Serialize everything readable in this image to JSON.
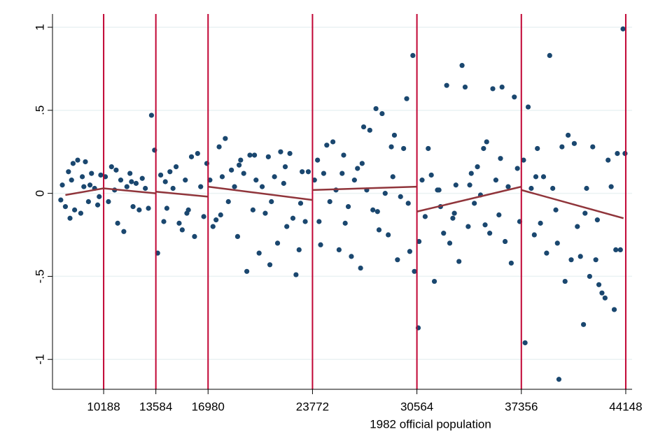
{
  "chart_data": {
    "type": "scatter",
    "xlabel": "1982 official population",
    "xlim": [
      6861,
      44560
    ],
    "ylim": [
      -1.18,
      1.08
    ],
    "xticks": [
      10188,
      13584,
      16980,
      23772,
      30564,
      37356,
      44148
    ],
    "yticks": [
      {
        "value": -1,
        "label": "-1"
      },
      {
        "value": -0.5,
        "label": "-.5"
      },
      0,
      {
        "value": 0.5,
        "label": ".5"
      },
      1
    ],
    "grid": true,
    "xline_color": "#c10534",
    "color": "#1a476f",
    "x": [
      7400,
      7500,
      7700,
      7900,
      8000,
      8200,
      8300,
      8500,
      8700,
      8900,
      9000,
      9200,
      9400,
      9600,
      9800,
      10000,
      8100,
      8800,
      9300,
      9900,
      10300,
      10500,
      10700,
      10900,
      11100,
      11300,
      11500,
      11700,
      11900,
      12100,
      12300,
      12500,
      12700,
      12900,
      13100,
      13300,
      13500,
      13700,
      11000,
      12000,
      13900,
      14100,
      14300,
      14500,
      14700,
      14900,
      15100,
      15300,
      15500,
      15700,
      15900,
      16100,
      16300,
      16500,
      16700,
      16900,
      14200,
      15600,
      17100,
      17300,
      17500,
      17700,
      17900,
      18100,
      18300,
      18500,
      18700,
      18900,
      19100,
      19300,
      19500,
      19700,
      19900,
      20100,
      20300,
      20500,
      20700,
      20900,
      21100,
      21300,
      21500,
      21700,
      21900,
      22100,
      22300,
      22500,
      22700,
      22900,
      23100,
      23300,
      23500,
      17800,
      19000,
      20000,
      21000,
      22000,
      23000,
      23900,
      24100,
      24300,
      24500,
      24700,
      24900,
      25100,
      25300,
      25500,
      25700,
      25900,
      26100,
      26300,
      26500,
      26700,
      26900,
      27100,
      27300,
      27500,
      27700,
      27900,
      28100,
      28300,
      28500,
      28700,
      28900,
      29100,
      29300,
      29500,
      29700,
      29900,
      30100,
      30300,
      30400,
      24200,
      25800,
      27000,
      28000,
      29000,
      30000,
      30700,
      30900,
      31100,
      31300,
      31500,
      31700,
      31900,
      32100,
      32300,
      32500,
      32700,
      32900,
      33100,
      33300,
      33500,
      33700,
      33900,
      34100,
      34300,
      34500,
      34700,
      34900,
      35100,
      35300,
      35500,
      35700,
      35900,
      36100,
      36300,
      36500,
      36700,
      36900,
      37100,
      37250,
      30650,
      32000,
      33000,
      34000,
      35000,
      36000,
      37500,
      37600,
      37800,
      38000,
      38200,
      38400,
      38600,
      38800,
      39000,
      39200,
      39400,
      39600,
      39800,
      40000,
      40200,
      40400,
      40600,
      40800,
      41000,
      41200,
      41400,
      41600,
      41800,
      42000,
      42200,
      42400,
      42600,
      42800,
      43000,
      43200,
      43400,
      43600,
      43800,
      43970,
      44100,
      38300,
      39700,
      41500,
      42300,
      43500
    ],
    "values": [
      -0.04,
      0.05,
      -0.08,
      0.13,
      -0.15,
      0.18,
      -0.1,
      0.2,
      -0.12,
      0.04,
      0.19,
      -0.05,
      0.12,
      0.03,
      -0.07,
      0.11,
      0.08,
      0.1,
      0.05,
      -0.02,
      0.1,
      -0.05,
      0.16,
      0.02,
      -0.18,
      0.08,
      -0.23,
      0.04,
      0.12,
      -0.08,
      0.06,
      -0.1,
      0.09,
      0.03,
      -0.09,
      0.47,
      0.26,
      -0.36,
      0.14,
      0.07,
      0.11,
      -0.17,
      -0.09,
      0.13,
      0.03,
      0.16,
      -0.18,
      -0.22,
      0.08,
      -0.1,
      0.22,
      -0.26,
      0.24,
      0.04,
      -0.14,
      0.18,
      0.07,
      -0.12,
      0.08,
      -0.2,
      -0.16,
      0.28,
      0.1,
      0.33,
      -0.05,
      0.14,
      0.04,
      -0.26,
      0.2,
      0.12,
      -0.47,
      0.23,
      -0.1,
      0.08,
      -0.36,
      0.04,
      -0.12,
      0.22,
      -0.05,
      0.1,
      -0.3,
      0.25,
      0.06,
      -0.2,
      0.24,
      -0.15,
      -0.49,
      -0.34,
      0.13,
      -0.17,
      0.13,
      -0.13,
      0.17,
      0.23,
      -0.43,
      0.16,
      -0.06,
      0.08,
      0.2,
      -0.31,
      0.12,
      0.29,
      -0.05,
      0.31,
      0.02,
      -0.34,
      0.12,
      -0.18,
      -0.08,
      -0.38,
      0.08,
      0.15,
      -0.45,
      0.4,
      0.02,
      0.38,
      -0.1,
      0.51,
      -0.22,
      0.48,
      0.0,
      -0.25,
      0.28,
      0.35,
      -0.4,
      -0.02,
      0.27,
      0.57,
      -0.35,
      0.83,
      -0.47,
      -0.17,
      0.23,
      0.18,
      -0.11,
      0.1,
      -0.06,
      -0.29,
      0.08,
      -0.14,
      0.27,
      0.11,
      -0.53,
      0.02,
      -0.08,
      -0.24,
      0.65,
      -0.3,
      -0.15,
      0.05,
      -0.41,
      0.77,
      0.64,
      -0.2,
      0.12,
      -0.06,
      0.16,
      -0.01,
      0.27,
      0.31,
      -0.24,
      0.63,
      0.08,
      -0.13,
      0.64,
      -0.29,
      0.04,
      -0.42,
      0.58,
      0.15,
      -0.17,
      -0.81,
      0.02,
      -0.12,
      0.05,
      -0.19,
      0.21,
      0.2,
      -0.9,
      0.52,
      0.03,
      -0.25,
      0.27,
      -0.18,
      0.1,
      -0.36,
      0.83,
      0.03,
      -0.1,
      -1.12,
      0.28,
      -0.53,
      0.35,
      -0.4,
      0.3,
      -0.2,
      -0.38,
      -0.79,
      0.03,
      -0.5,
      0.28,
      -0.4,
      -0.55,
      -0.6,
      -0.63,
      0.2,
      0.04,
      -0.7,
      0.24,
      -0.34,
      0.99,
      0.24,
      0.1,
      -0.3,
      -0.12,
      -0.16,
      -0.34
    ],
    "fit": {
      "color": "#90353b",
      "segments": [
        {
          "x": [
            7700,
            10188
          ],
          "values": [
            -0.01,
            0.03
          ]
        },
        {
          "x": [
            10188,
            13584
          ],
          "values": [
            0.03,
            0.0
          ]
        },
        {
          "x": [
            13584,
            16980
          ],
          "values": [
            0.01,
            -0.02
          ]
        },
        {
          "x": [
            16980,
            23772
          ],
          "values": [
            0.04,
            -0.04
          ]
        },
        {
          "x": [
            23772,
            30564
          ],
          "values": [
            0.02,
            0.04
          ]
        },
        {
          "x": [
            30564,
            37356
          ],
          "values": [
            -0.11,
            0.04
          ]
        },
        {
          "x": [
            37356,
            44000
          ],
          "values": [
            0.02,
            -0.15
          ]
        }
      ]
    }
  }
}
